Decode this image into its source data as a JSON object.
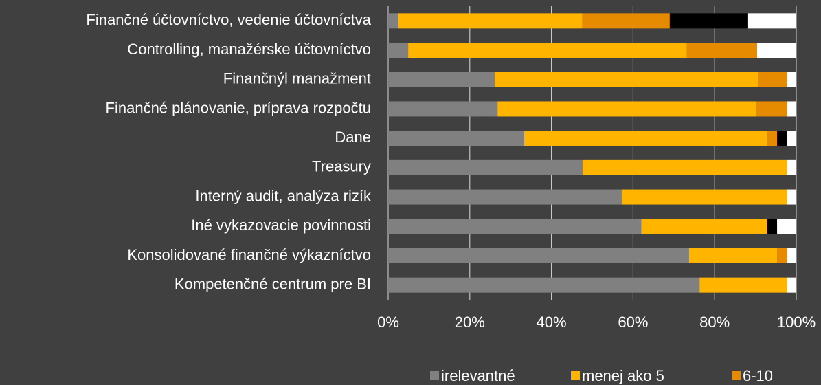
{
  "chart_data": {
    "type": "stacked_bar_horizontal",
    "categories": [
      "Finančné účtovníctvo, vedenie účtovníctva",
      "Controlling, manažérske účtovníctvo",
      "Finančnýl manažment",
      "Finančné plánovanie, príprava rozpočtu",
      "Dane",
      "Treasury",
      "Interný audit, analýza rizík",
      "Iné vykazovacie povinnosti",
      "Konsolidované finančné výkazníctvo",
      "Kompetenčné centrum pre BI"
    ],
    "series": [
      {
        "name": "irelevantné",
        "color": "#808080",
        "values": [
          2.4,
          4.9,
          26.1,
          26.8,
          33.3,
          47.6,
          57.2,
          62.0,
          73.7,
          76.3
        ]
      },
      {
        "name": "menej ako 5",
        "color": "#ffb400",
        "values": [
          45.2,
          68.3,
          64.5,
          63.4,
          59.6,
          50.2,
          40.6,
          30.9,
          21.6,
          21.5
        ]
      },
      {
        "name": "6-10",
        "color": "#e68a00",
        "values": [
          21.4,
          17.2,
          7.2,
          7.6,
          2.4,
          0,
          0,
          0,
          2.5,
          0
        ]
      },
      {
        "color": "#000000",
        "values": [
          19.2,
          0,
          0,
          0,
          2.5,
          0,
          0,
          2.4,
          0,
          0
        ]
      },
      {
        "color": "#ffffff",
        "values": [
          11.8,
          9.6,
          2.2,
          2.2,
          2.2,
          2.2,
          2.2,
          4.7,
          2.2,
          2.2
        ]
      }
    ],
    "xlim": [
      0,
      100
    ],
    "xticks": [
      {
        "value": 0,
        "label": "0%"
      },
      {
        "value": 20,
        "label": "20%"
      },
      {
        "value": 40,
        "label": "40%"
      },
      {
        "value": 60,
        "label": "60%"
      },
      {
        "value": 80,
        "label": "80%"
      },
      {
        "value": 100,
        "label": "100%"
      }
    ],
    "grid": true
  }
}
